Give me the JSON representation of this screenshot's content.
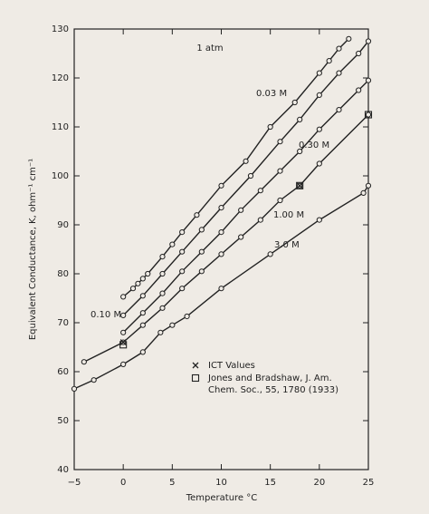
{
  "chart_data": {
    "type": "line",
    "annotation": "1 atm",
    "xlabel": "Temperature °C",
    "ylabel": "Equivalent Conductance, K, ohm⁻¹ cm⁻¹",
    "xlim": [
      -5,
      25
    ],
    "ylim": [
      40,
      130
    ],
    "xticks": [
      {
        "value": -5,
        "label": "−5"
      },
      0,
      5,
      10,
      15,
      20,
      25
    ],
    "yticks": [
      40,
      50,
      60,
      70,
      80,
      90,
      100,
      110,
      120,
      130
    ],
    "grid": false,
    "series": [
      {
        "name": "0.03 M",
        "color": "#222222",
        "x": [
          0,
          1,
          1.5,
          2,
          2.5,
          4,
          5,
          6,
          7.5,
          10,
          12.5,
          15,
          17.5,
          20,
          21,
          22,
          23
        ],
        "values": [
          75.3,
          77,
          78,
          79,
          80,
          83.5,
          86,
          88.5,
          92,
          98,
          103,
          110,
          115,
          121,
          123.5,
          126,
          128
        ]
      },
      {
        "name": "0.10 M",
        "color": "#222222",
        "x": [
          0,
          2,
          4,
          6,
          8,
          10,
          13,
          16,
          18,
          20,
          22,
          24,
          25
        ],
        "values": [
          71.5,
          75.5,
          80,
          84.5,
          89,
          93.5,
          100,
          107,
          111.5,
          116.5,
          121,
          125,
          127.5
        ]
      },
      {
        "name": "0.30 M",
        "color": "#222222",
        "x": [
          0,
          2,
          4,
          6,
          8,
          10,
          12,
          14,
          16,
          18,
          20,
          22,
          24,
          25
        ],
        "values": [
          68,
          72,
          76,
          80.5,
          84.5,
          88.5,
          93,
          97,
          101,
          105,
          109.5,
          113.5,
          117.5,
          119.5
        ]
      },
      {
        "name": "1.00 M",
        "color": "#222222",
        "x": [
          -4,
          0,
          2,
          4,
          6,
          8,
          10,
          12,
          14,
          16,
          18,
          20,
          25
        ],
        "values": [
          62,
          66,
          69.5,
          73,
          77,
          80.5,
          84,
          87.5,
          91,
          95,
          98,
          102.5,
          112.5
        ]
      },
      {
        "name": "3.0 M",
        "color": "#222222",
        "x": [
          -5,
          -3,
          0,
          2,
          3.8,
          5,
          6.5,
          10,
          15,
          20,
          24.5,
          25
        ],
        "values": [
          56.5,
          58.3,
          61.5,
          64,
          68,
          69.5,
          71.3,
          77,
          84,
          91,
          96.5,
          98
        ]
      }
    ],
    "legend": [
      {
        "name": "ICT Values",
        "marker": "x",
        "x": [
          0,
          18
        ],
        "values": [
          66,
          98
        ]
      },
      {
        "name": "Jones and Bradshaw, J. Am.",
        "name2": "Chem. Soc., 55, 1780 (1933)",
        "marker": "square",
        "x": [
          0,
          18,
          25
        ],
        "values": [
          65.5,
          98,
          112.5
        ]
      }
    ]
  }
}
